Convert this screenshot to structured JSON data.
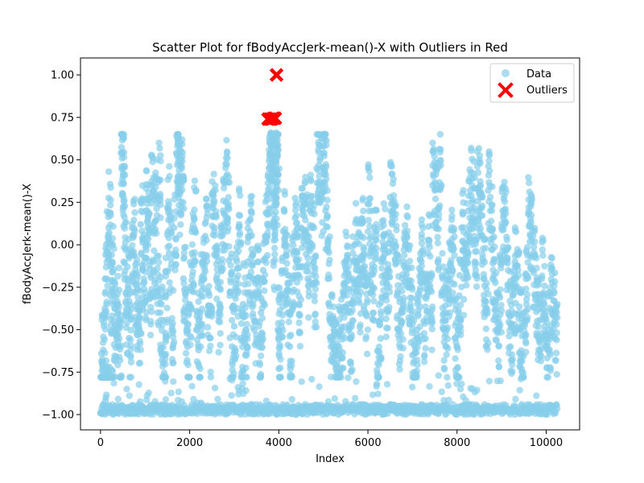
{
  "chart_data": {
    "type": "scatter",
    "title": "Scatter Plot for fBodyAccJerk-mean()-X with Outliers in Red",
    "xlabel": "Index",
    "ylabel": "fBodyAccJerk-mean()-X",
    "xlim": [
      -450,
      10750
    ],
    "ylim": [
      -1.09,
      1.1
    ],
    "xticks": [
      0,
      2000,
      4000,
      6000,
      8000,
      10000
    ],
    "yticks": [
      -1.0,
      -0.75,
      -0.5,
      -0.25,
      0.0,
      0.25,
      0.5,
      0.75,
      1.0
    ],
    "ytick_labels": [
      "−1.00",
      "−0.75",
      "−0.50",
      "−0.25",
      "0.00",
      "0.25",
      "0.50",
      "0.75",
      "1.00"
    ],
    "grid": false,
    "legend_position": "top-right",
    "series": [
      {
        "name": "Data",
        "color": "#87CEEB",
        "marker": "circle",
        "points": [
          [
            0,
            -0.99
          ],
          [
            40,
            -0.98
          ],
          [
            80,
            -0.96
          ],
          [
            120,
            -0.9
          ],
          [
            160,
            -0.97
          ],
          [
            200,
            -0.99
          ],
          [
            240,
            -0.98
          ],
          [
            20,
            -0.64
          ],
          [
            60,
            -0.62
          ],
          [
            100,
            -0.2
          ],
          [
            140,
            -0.05
          ],
          [
            180,
            0.19
          ],
          [
            220,
            -0.3
          ],
          [
            260,
            -0.1
          ],
          [
            300,
            -0.45
          ],
          [
            340,
            -0.52
          ],
          [
            380,
            -0.35
          ],
          [
            420,
            -0.6
          ],
          [
            460,
            0.54
          ],
          [
            480,
            0.46
          ],
          [
            500,
            0.3
          ],
          [
            520,
            -0.1
          ],
          [
            560,
            -0.42
          ],
          [
            600,
            -0.2
          ],
          [
            640,
            -0.55
          ],
          [
            700,
            -0.05
          ],
          [
            740,
            0.05
          ],
          [
            780,
            -0.28
          ],
          [
            820,
            -0.38
          ],
          [
            860,
            -0.47
          ],
          [
            900,
            0.12
          ],
          [
            940,
            -0.15
          ],
          [
            980,
            -0.22
          ],
          [
            1020,
            0.2
          ],
          [
            1060,
            0.1
          ],
          [
            1100,
            -0.32
          ],
          [
            1140,
            0.35
          ],
          [
            1180,
            -0.1
          ],
          [
            1220,
            0.28
          ],
          [
            1260,
            -0.25
          ],
          [
            1300,
            0.37
          ],
          [
            1340,
            -0.4
          ],
          [
            1380,
            -0.68
          ],
          [
            1420,
            -0.78
          ],
          [
            1460,
            -0.3
          ],
          [
            1500,
            0.22
          ],
          [
            1540,
            -0.05
          ],
          [
            1600,
            -0.5
          ],
          [
            1650,
            0.1
          ],
          [
            1700,
            0.54
          ],
          [
            1720,
            0.47
          ],
          [
            1740,
            0.4
          ],
          [
            1780,
            0.3
          ],
          [
            1820,
            0.46
          ],
          [
            1860,
            -0.2
          ],
          [
            1900,
            -0.45
          ],
          [
            1950,
            -0.6
          ],
          [
            2000,
            -0.35
          ],
          [
            2050,
            -0.05
          ],
          [
            2100,
            0.15
          ],
          [
            2150,
            -0.5
          ],
          [
            2200,
            -0.62
          ],
          [
            2250,
            -0.3
          ],
          [
            2300,
            -0.1
          ],
          [
            2350,
            0.05
          ],
          [
            2400,
            -0.4
          ],
          [
            2450,
            -0.55
          ],
          [
            2500,
            0.3
          ],
          [
            2550,
            0.1
          ],
          [
            2600,
            -0.2
          ],
          [
            2650,
            -0.45
          ],
          [
            2700,
            0.05
          ],
          [
            2750,
            0.2
          ],
          [
            2800,
            0.37
          ],
          [
            2850,
            0.15
          ],
          [
            2900,
            -0.3
          ],
          [
            2950,
            -0.6
          ],
          [
            3000,
            -0.48
          ],
          [
            3050,
            -0.2
          ],
          [
            3100,
            0.1
          ],
          [
            3150,
            -0.55
          ],
          [
            3200,
            -0.35
          ],
          [
            3250,
            -0.65
          ],
          [
            3300,
            -0.1
          ],
          [
            3350,
            0.05
          ],
          [
            3400,
            -0.3
          ],
          [
            3450,
            -0.45
          ],
          [
            3500,
            -0.2
          ],
          [
            3550,
            -0.6
          ],
          [
            3600,
            -0.4
          ],
          [
            3650,
            -0.15
          ],
          [
            3700,
            0.05
          ],
          [
            3750,
            0.3
          ],
          [
            3780,
            0.45
          ],
          [
            3800,
            0.6
          ],
          [
            3820,
            0.66
          ],
          [
            3840,
            0.55
          ],
          [
            3860,
            0.3
          ],
          [
            3880,
            -0.1
          ],
          [
            3900,
            0.42
          ],
          [
            3920,
            0.28
          ],
          [
            3940,
            0.66
          ],
          [
            3960,
            0.57
          ],
          [
            3980,
            -0.5
          ],
          [
            4000,
            -0.73
          ],
          [
            4050,
            -0.3
          ],
          [
            4100,
            0.08
          ],
          [
            4150,
            -0.15
          ],
          [
            4200,
            -0.4
          ],
          [
            4250,
            -0.6
          ],
          [
            4300,
            -0.2
          ],
          [
            4350,
            0.05
          ],
          [
            4400,
            -0.1
          ],
          [
            4450,
            -0.35
          ],
          [
            4500,
            0.1
          ],
          [
            4550,
            0.2
          ],
          [
            4600,
            0.08
          ],
          [
            4650,
            -0.2
          ],
          [
            4700,
            0.2
          ],
          [
            4750,
            0.0
          ],
          [
            4800,
            -0.3
          ],
          [
            4850,
            0.45
          ],
          [
            4900,
            0.47
          ],
          [
            4950,
            0.3
          ],
          [
            5000,
            0.58
          ],
          [
            5020,
            0.54
          ],
          [
            5050,
            0.2
          ],
          [
            5100,
            -0.2
          ],
          [
            5150,
            -0.45
          ],
          [
            5200,
            -0.55
          ],
          [
            5250,
            -0.7
          ],
          [
            5300,
            -0.75
          ],
          [
            5350,
            -0.6
          ],
          [
            5400,
            -0.5
          ],
          [
            5450,
            -0.3
          ],
          [
            5500,
            -0.1
          ],
          [
            5550,
            -0.35
          ],
          [
            5600,
            -0.55
          ],
          [
            5650,
            -0.2
          ],
          [
            5700,
            0.0
          ],
          [
            5750,
            -0.1
          ],
          [
            5800,
            -0.3
          ],
          [
            5850,
            0.05
          ],
          [
            5900,
            -0.15
          ],
          [
            5950,
            -0.4
          ],
          [
            6000,
            0.24
          ],
          [
            6050,
            -0.05
          ],
          [
            6100,
            -0.25
          ],
          [
            6150,
            0.1
          ],
          [
            6200,
            -0.82
          ],
          [
            6250,
            -0.45
          ],
          [
            6300,
            -0.1
          ],
          [
            6350,
            0.05
          ],
          [
            6400,
            -0.3
          ],
          [
            6450,
            -0.15
          ],
          [
            6500,
            0.28
          ],
          [
            6550,
            0.2
          ],
          [
            6600,
            0.02
          ],
          [
            6650,
            -0.3
          ],
          [
            6700,
            -0.5
          ],
          [
            6750,
            -0.4
          ],
          [
            6800,
            -0.1
          ],
          [
            6850,
            0.0
          ],
          [
            6900,
            -0.25
          ],
          [
            6950,
            -0.35
          ],
          [
            7000,
            -0.65
          ],
          [
            7050,
            -0.75
          ],
          [
            7100,
            -0.5
          ],
          [
            7150,
            -0.3
          ],
          [
            7200,
            -0.1
          ],
          [
            7250,
            -0.45
          ],
          [
            7300,
            -0.2
          ],
          [
            7350,
            -0.05
          ],
          [
            7400,
            -0.4
          ],
          [
            7450,
            0.35
          ],
          [
            7500,
            0.32
          ],
          [
            7550,
            0.1
          ],
          [
            7600,
            0.46
          ],
          [
            7650,
            -0.3
          ],
          [
            7700,
            -0.5
          ],
          [
            7750,
            -0.4
          ],
          [
            7800,
            -0.2
          ],
          [
            7850,
            0.0
          ],
          [
            7900,
            -0.15
          ],
          [
            7950,
            -0.55
          ],
          [
            8000,
            -0.6
          ],
          [
            8050,
            -0.3
          ],
          [
            8100,
            0.1
          ],
          [
            8150,
            -0.2
          ],
          [
            8200,
            0.0
          ],
          [
            8250,
            0.2
          ],
          [
            8300,
            0.32
          ],
          [
            8350,
            0.25
          ],
          [
            8400,
            -0.1
          ],
          [
            8450,
            0.33
          ],
          [
            8500,
            0.3
          ],
          [
            8550,
            0.05
          ],
          [
            8600,
            -0.2
          ],
          [
            8650,
            -0.4
          ],
          [
            8700,
            0.32
          ],
          [
            8750,
            0.1
          ],
          [
            8800,
            -0.2
          ],
          [
            8850,
            -0.35
          ],
          [
            8900,
            -0.5
          ],
          [
            8950,
            -0.3
          ],
          [
            9000,
            0.1
          ],
          [
            9050,
            0.18
          ],
          [
            9100,
            -0.1
          ],
          [
            9150,
            -0.4
          ],
          [
            9200,
            -0.6
          ],
          [
            9250,
            -0.3
          ],
          [
            9300,
            -0.1
          ],
          [
            9350,
            -0.25
          ],
          [
            9400,
            -0.5
          ],
          [
            9450,
            -0.65
          ],
          [
            9500,
            -0.4
          ],
          [
            9550,
            -0.2
          ],
          [
            9600,
            0.18
          ],
          [
            9650,
            0.05
          ],
          [
            9700,
            -0.15
          ],
          [
            9750,
            -0.3
          ],
          [
            9800,
            -0.45
          ],
          [
            9850,
            -0.55
          ],
          [
            9900,
            -0.2
          ],
          [
            9950,
            -0.35
          ],
          [
            10000,
            -0.6
          ],
          [
            10050,
            -0.5
          ],
          [
            10100,
            -0.3
          ],
          [
            10150,
            -0.4
          ],
          [
            10200,
            -0.55
          ],
          [
            10250,
            -0.35
          ]
        ]
      },
      {
        "name": "Outliers",
        "color": "#FF0000",
        "marker": "x",
        "points": [
          [
            3760,
            0.74
          ],
          [
            3800,
            0.74
          ],
          [
            3840,
            0.74
          ],
          [
            3880,
            0.745
          ],
          [
            3920,
            0.745
          ],
          [
            3950,
            1.0
          ]
        ]
      }
    ]
  }
}
